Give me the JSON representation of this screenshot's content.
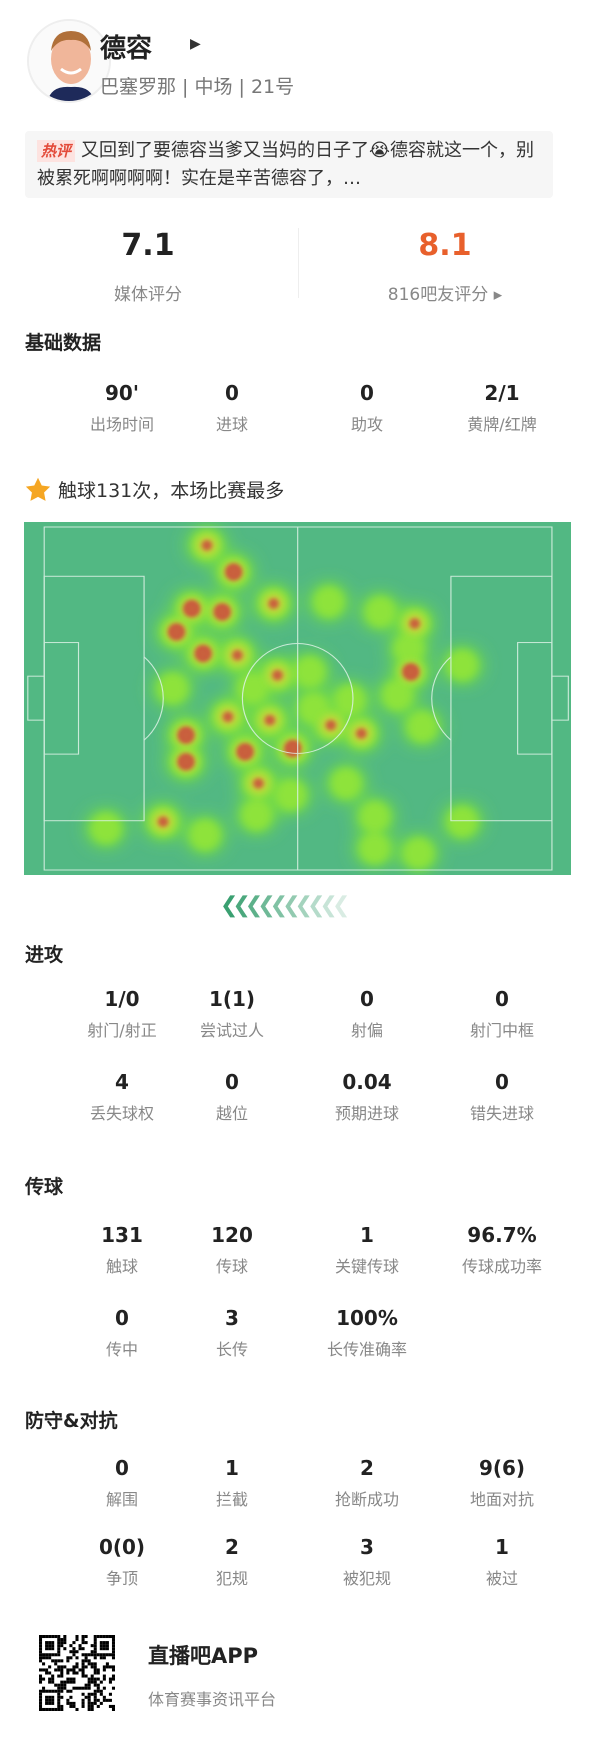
{
  "player": {
    "name": "德容",
    "team_line": "巴塞罗那 | 中场 | 21号"
  },
  "comment": {
    "tag": "热评",
    "text": "又回到了要德容当爹又当妈的日子了😭德容就这一个，别被累死啊啊啊啊！实在是辛苦德容了，…"
  },
  "ratings": {
    "media_score": "7.1",
    "media_label": "媒体评分",
    "fan_score": "8.1",
    "fan_label": "816吧友评分 ▸",
    "fan_color": "#e8602c"
  },
  "basic": {
    "title": "基础数据",
    "stats": [
      {
        "value": "90'",
        "label": "出场时间"
      },
      {
        "value": "0",
        "label": "进球"
      },
      {
        "value": "0",
        "label": "助攻"
      },
      {
        "value": "2/1",
        "label": "黄牌/红牌"
      }
    ]
  },
  "highlight": {
    "icon": "star-icon",
    "text": "触球131次，本场比赛最多"
  },
  "attack": {
    "title": "进攻",
    "stats": [
      {
        "value": "1/0",
        "label": "射门/射正"
      },
      {
        "value": "1(1)",
        "label": "尝试过人"
      },
      {
        "value": "0",
        "label": "射偏"
      },
      {
        "value": "0",
        "label": "射门中框"
      },
      {
        "value": "4",
        "label": "丢失球权"
      },
      {
        "value": "0",
        "label": "越位"
      },
      {
        "value": "0.04",
        "label": "预期进球"
      },
      {
        "value": "0",
        "label": "错失进球"
      }
    ]
  },
  "passing": {
    "title": "传球",
    "stats": [
      {
        "value": "131",
        "label": "触球"
      },
      {
        "value": "120",
        "label": "传球"
      },
      {
        "value": "1",
        "label": "关键传球"
      },
      {
        "value": "96.7%",
        "label": "传球成功率"
      },
      {
        "value": "0",
        "label": "传中"
      },
      {
        "value": "3",
        "label": "长传"
      },
      {
        "value": "100%",
        "label": "长传准确率"
      }
    ]
  },
  "defense": {
    "title": "防守&对抗",
    "stats": [
      {
        "value": "0",
        "label": "解围"
      },
      {
        "value": "1",
        "label": "拦截"
      },
      {
        "value": "2",
        "label": "抢断成功"
      },
      {
        "value": "9(6)",
        "label": "地面对抗"
      },
      {
        "value": "0(0)",
        "label": "争顶"
      },
      {
        "value": "2",
        "label": "犯规"
      },
      {
        "value": "3",
        "label": "被犯规"
      },
      {
        "value": "1",
        "label": "被过"
      }
    ]
  },
  "footer": {
    "app": "直播吧APP",
    "slogan": "体育赛事资讯平台"
  },
  "colors": {
    "pitch": "#52b883",
    "accent_green": "#3aa071"
  }
}
